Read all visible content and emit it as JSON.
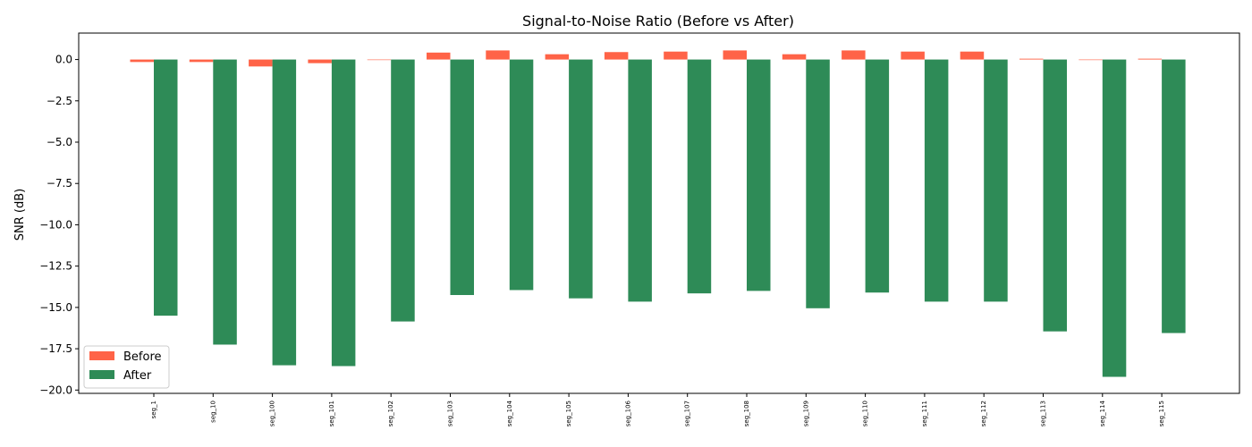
{
  "chart_data": {
    "type": "bar",
    "title": "Signal-to-Noise Ratio (Before vs After)",
    "xlabel": "",
    "ylabel": "SNR (dB)",
    "ylim": [
      -20.2,
      1.6
    ],
    "yticks": [
      0.0,
      -2.5,
      -5.0,
      -7.5,
      -10.0,
      -12.5,
      -15.0,
      -17.5,
      -20.0
    ],
    "ytick_labels": [
      "0.0",
      "−2.5",
      "−5.0",
      "−7.5",
      "−10.0",
      "−12.5",
      "−15.0",
      "−17.5",
      "−20.0"
    ],
    "categories": [
      "seg_1",
      "seg_10",
      "seg_100",
      "seg_101",
      "seg_102",
      "seg_103",
      "seg_104",
      "seg_105",
      "seg_106",
      "seg_107",
      "seg_108",
      "seg_109",
      "seg_110",
      "seg_111",
      "seg_112",
      "seg_113",
      "seg_114",
      "seg_115"
    ],
    "series": [
      {
        "name": "Before",
        "color": "#ff6347",
        "values": [
          -0.15,
          -0.15,
          -0.42,
          -0.22,
          0.0,
          0.42,
          0.55,
          0.32,
          0.45,
          0.48,
          0.55,
          0.32,
          0.55,
          0.48,
          0.48,
          0.05,
          0.0,
          0.05
        ]
      },
      {
        "name": "After",
        "color": "#2e8b57",
        "values": [
          -15.5,
          -17.25,
          -18.5,
          -18.55,
          -15.85,
          -14.25,
          -13.95,
          -14.45,
          -14.65,
          -14.15,
          -14.0,
          -15.05,
          -14.1,
          -14.65,
          -14.65,
          -16.45,
          -19.2,
          -16.55
        ]
      }
    ],
    "grid": false,
    "legend_position": "lower-left"
  }
}
